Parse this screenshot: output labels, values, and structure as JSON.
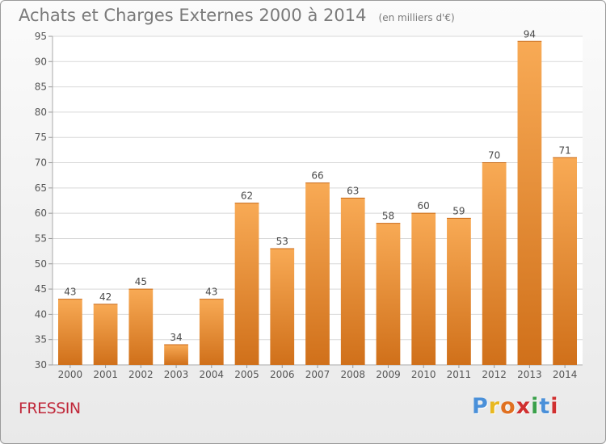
{
  "header": {
    "title": "Achats et Charges Externes 2000 à 2014",
    "subtitle": "(en milliers d'€)"
  },
  "footer": {
    "commune": "FRESSIN",
    "logo_text": "Proxiti",
    "logo_colors": [
      "#4a90d9",
      "#e8b820",
      "#e07020",
      "#d03030",
      "#3aa04a",
      "#4a90d9",
      "#d03030"
    ]
  },
  "chart_data": {
    "type": "bar",
    "title": "Achats et Charges Externes 2000 à 2014",
    "subtitle": "(en milliers d'€)",
    "categories": [
      "2000",
      "2001",
      "2002",
      "2003",
      "2004",
      "2005",
      "2006",
      "2007",
      "2008",
      "2009",
      "2010",
      "2011",
      "2012",
      "2013",
      "2014"
    ],
    "values": [
      43,
      42,
      45,
      34,
      43,
      62,
      53,
      66,
      63,
      58,
      60,
      59,
      70,
      94,
      71
    ],
    "ylim": [
      30,
      95
    ],
    "yticks": [
      30,
      35,
      40,
      45,
      50,
      55,
      60,
      65,
      70,
      75,
      80,
      85,
      90,
      95
    ],
    "grid": true,
    "bar_color": "#f0922e",
    "bar_color_light": "#f8aa55",
    "bar_color_dark": "#d0701a",
    "grid_color": "#d8d8d8",
    "plot_bg": "#ffffff"
  }
}
